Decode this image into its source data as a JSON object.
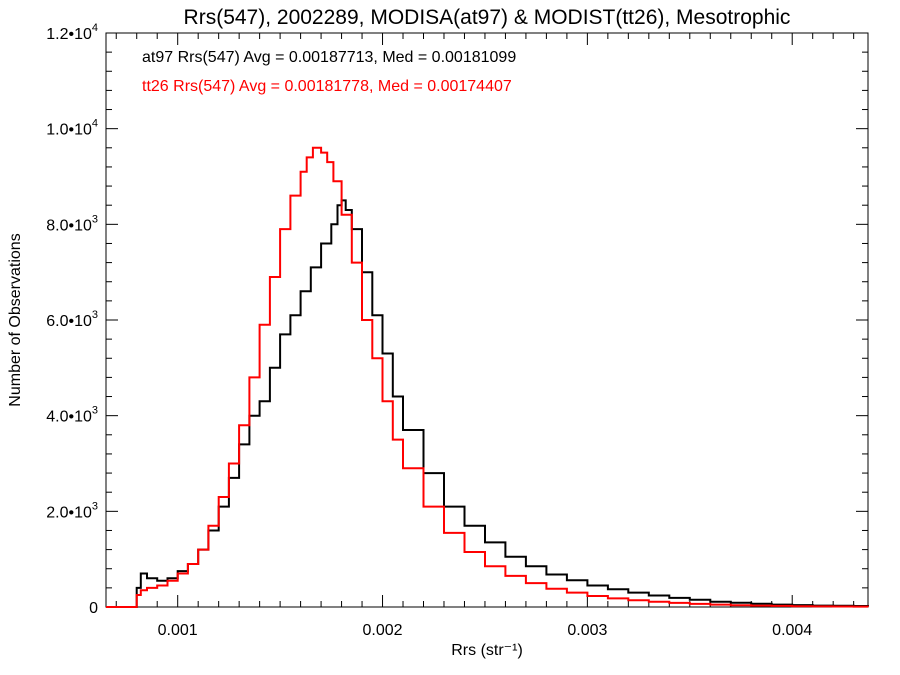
{
  "chart_data": {
    "type": "line",
    "title": "Rrs(547), 2002289, MODISA(at97) & MODIST(tt26), Mesotrophic",
    "xlabel": "Rrs (str⁻¹)",
    "ylabel": "Number of Observations",
    "xlim": [
      0.00065,
      0.00437
    ],
    "ylim": [
      0,
      12000
    ],
    "x_ticks": [
      {
        "value": 0.001,
        "label": "0.001"
      },
      {
        "value": 0.002,
        "label": "0.002"
      },
      {
        "value": 0.003,
        "label": "0.003"
      },
      {
        "value": 0.004,
        "label": "0.004"
      }
    ],
    "y_ticks": [
      {
        "value": 0,
        "mantissa": "0",
        "exp": ""
      },
      {
        "value": 2000,
        "mantissa": "2.0•1",
        "exp": "3"
      },
      {
        "value": 4000,
        "mantissa": "4.0•1",
        "exp": "3"
      },
      {
        "value": 6000,
        "mantissa": "6.0•1",
        "exp": "3"
      },
      {
        "value": 8000,
        "mantissa": "8.0•1",
        "exp": "3"
      },
      {
        "value": 10000,
        "mantissa": "1.0•1",
        "exp": "4"
      },
      {
        "value": 12000,
        "mantissa": "1.2•1",
        "exp": "4"
      }
    ],
    "grid": false,
    "step": true,
    "series": [
      {
        "name": "at97",
        "color": "#000000",
        "annotation": "at97 Rrs(547) Avg = 0.00187713, Med = 0.00181099",
        "x": [
          0.00065,
          0.00078,
          0.0008,
          0.00082,
          0.00085,
          0.0009,
          0.00095,
          0.001,
          0.00105,
          0.0011,
          0.00115,
          0.0012,
          0.00125,
          0.0013,
          0.00135,
          0.0014,
          0.00145,
          0.0015,
          0.00155,
          0.0016,
          0.00165,
          0.0017,
          0.00175,
          0.00178,
          0.0018,
          0.00182,
          0.00185,
          0.0019,
          0.00195,
          0.002,
          0.00205,
          0.0021,
          0.0022,
          0.0023,
          0.0024,
          0.0025,
          0.0026,
          0.0027,
          0.0028,
          0.0029,
          0.003,
          0.0031,
          0.0032,
          0.0033,
          0.0034,
          0.0035,
          0.0036,
          0.0037,
          0.0038,
          0.0039,
          0.004,
          0.0041,
          0.0042,
          0.0043,
          0.00437
        ],
        "y": [
          0,
          0,
          400,
          700,
          600,
          550,
          600,
          750,
          900,
          1200,
          1600,
          2100,
          2700,
          3400,
          4000,
          4300,
          5000,
          5700,
          6100,
          6600,
          7100,
          7600,
          8000,
          8400,
          8500,
          8300,
          7900,
          7000,
          6100,
          5300,
          4400,
          3700,
          2800,
          2100,
          1700,
          1350,
          1050,
          850,
          680,
          560,
          450,
          370,
          300,
          240,
          190,
          150,
          110,
          90,
          70,
          50,
          40,
          30,
          25,
          20,
          15
        ]
      },
      {
        "name": "tt26",
        "color": "#ff0000",
        "annotation": "tt26 Rrs(547) Avg = 0.00181778, Med = 0.00174407",
        "x": [
          0.00065,
          0.00078,
          0.0008,
          0.00082,
          0.00085,
          0.0009,
          0.00095,
          0.001,
          0.00105,
          0.0011,
          0.00115,
          0.0012,
          0.00125,
          0.0013,
          0.00135,
          0.0014,
          0.00145,
          0.0015,
          0.00155,
          0.0016,
          0.00163,
          0.00166,
          0.0017,
          0.00173,
          0.00176,
          0.0018,
          0.00185,
          0.0019,
          0.00195,
          0.002,
          0.00205,
          0.0021,
          0.0022,
          0.0023,
          0.0024,
          0.0025,
          0.0026,
          0.0027,
          0.0028,
          0.0029,
          0.003,
          0.0031,
          0.0032,
          0.0033,
          0.0034,
          0.0035,
          0.0036,
          0.0037,
          0.0038,
          0.0039,
          0.004,
          0.0041,
          0.0042,
          0.0043,
          0.00437
        ],
        "y": [
          0,
          0,
          250,
          350,
          400,
          450,
          550,
          700,
          900,
          1200,
          1700,
          2300,
          3000,
          3800,
          4800,
          5900,
          6900,
          7900,
          8600,
          9100,
          9400,
          9600,
          9500,
          9300,
          8900,
          8200,
          7200,
          6000,
          5200,
          4300,
          3500,
          2900,
          2100,
          1550,
          1150,
          850,
          650,
          500,
          380,
          300,
          230,
          180,
          140,
          110,
          85,
          65,
          50,
          38,
          30,
          22,
          17,
          13,
          10,
          8,
          6
        ]
      }
    ]
  }
}
